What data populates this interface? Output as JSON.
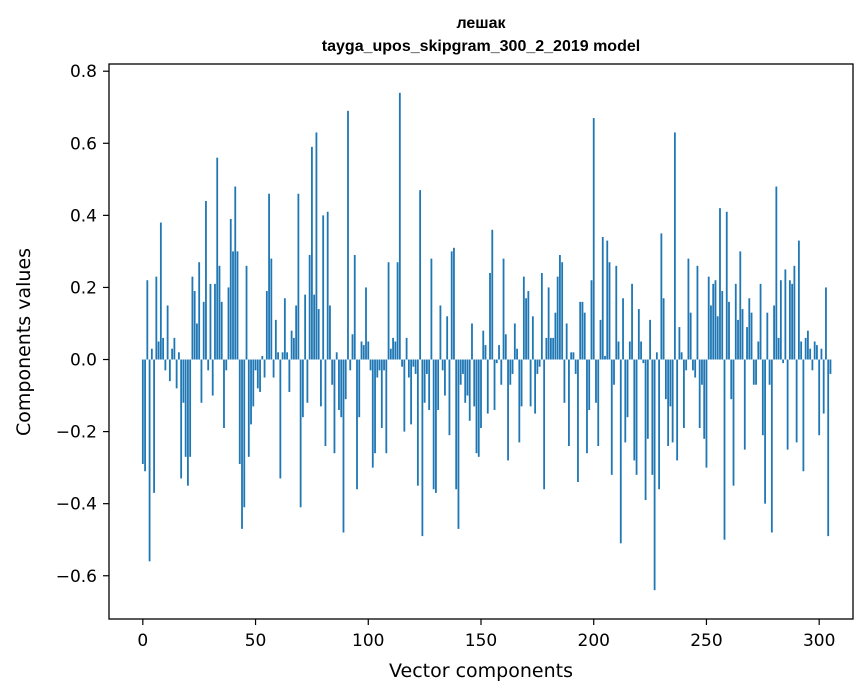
{
  "chart_data": {
    "type": "bar",
    "title": "лешак",
    "subtitle": "tayga_upos_skipgram_300_2_2019 model",
    "xlabel": "Vector components",
    "ylabel": "Components values",
    "xlim": [
      -15,
      315
    ],
    "ylim": [
      -0.72,
      0.82
    ],
    "xticks": [
      0,
      50,
      100,
      150,
      200,
      250,
      300
    ],
    "yticks": [
      -0.6,
      -0.4,
      -0.2,
      0.0,
      0.2,
      0.4,
      0.6,
      0.8
    ],
    "xtick_labels": [
      "0",
      "50",
      "100",
      "150",
      "200",
      "250",
      "300"
    ],
    "ytick_labels": [
      "−0.6",
      "−0.4",
      "−0.2",
      "0.0",
      "0.2",
      "0.4",
      "0.6",
      "0.8"
    ],
    "bar_color": "#1f77b4",
    "grid": false,
    "values": [
      -0.29,
      -0.31,
      0.22,
      -0.56,
      0.03,
      -0.37,
      0.23,
      0.05,
      0.38,
      0.06,
      -0.03,
      0.15,
      -0.06,
      0.03,
      0.06,
      -0.08,
      0.02,
      -0.33,
      -0.12,
      -0.27,
      -0.35,
      -0.27,
      0.23,
      0.19,
      0.1,
      0.27,
      -0.12,
      0.16,
      0.44,
      -0.03,
      0.21,
      -0.1,
      0.21,
      0.56,
      0.26,
      0.16,
      -0.19,
      -0.03,
      0.2,
      0.39,
      0.3,
      0.48,
      0.3,
      -0.29,
      -0.47,
      -0.41,
      0.26,
      -0.27,
      -0.18,
      -0.13,
      -0.03,
      -0.08,
      -0.09,
      0.01,
      -0.05,
      0.19,
      0.46,
      0.28,
      -0.05,
      0.11,
      0.02,
      -0.33,
      0.02,
      0.17,
      0.02,
      -0.09,
      0.08,
      0.06,
      0.15,
      0.46,
      -0.41,
      -0.16,
      0.18,
      -0.12,
      0.29,
      0.59,
      0.18,
      0.63,
      0.14,
      -0.13,
      0.4,
      -0.24,
      0.41,
      0.15,
      -0.07,
      -0.26,
      0.02,
      -0.14,
      -0.16,
      -0.48,
      -0.11,
      0.69,
      -0.03,
      0.07,
      0.29,
      -0.36,
      -0.16,
      0.05,
      0.04,
      0.2,
      0.05,
      -0.03,
      -0.3,
      -0.26,
      -0.05,
      -0.03,
      -0.19,
      -0.03,
      -0.26,
      0.27,
      0.03,
      0.06,
      0.05,
      0.27,
      0.74,
      -0.02,
      -0.2,
      0.06,
      -0.05,
      -0.18,
      -0.02,
      -0.04,
      -0.35,
      0.47,
      -0.49,
      -0.12,
      -0.04,
      -0.14,
      0.28,
      -0.36,
      -0.37,
      -0.14,
      0.15,
      -0.03,
      -0.1,
      0.12,
      -0.21,
      0.3,
      0.31,
      -0.36,
      -0.47,
      -0.07,
      -0.04,
      -0.12,
      -0.1,
      -0.17,
      0.1,
      -0.13,
      -0.26,
      -0.27,
      -0.19,
      0.08,
      0.04,
      -0.15,
      0.24,
      0.36,
      -0.14,
      -0.01,
      0.04,
      -0.07,
      0.28,
      0.07,
      -0.28,
      -0.07,
      -0.04,
      0.1,
      0.03,
      -0.23,
      -0.13,
      0.23,
      0.17,
      0.19,
      -0.13,
      0.12,
      -0.15,
      -0.04,
      -0.02,
      0.24,
      -0.36,
      0.06,
      0.2,
      0.06,
      0.06,
      0.13,
      0.23,
      0.29,
      0.27,
      -0.12,
      0.1,
      -0.24,
      0.02,
      0.02,
      -0.04,
      -0.34,
      0.16,
      0.16,
      0.13,
      -0.26,
      -0.14,
      0.22,
      0.67,
      -0.12,
      -0.24,
      0.11,
      0.34,
      0.01,
      0.33,
      0.27,
      -0.32,
      -0.07,
      0.26,
      0.05,
      -0.51,
      0.17,
      -0.23,
      -0.16,
      0.05,
      0.21,
      -0.28,
      -0.32,
      0.14,
      0.05,
      -0.01,
      -0.39,
      -0.22,
      0.11,
      -0.32,
      -0.64,
      0.02,
      -0.36,
      0.35,
      0.17,
      -0.11,
      -0.24,
      -0.13,
      -0.23,
      0.63,
      -0.28,
      0.09,
      0.02,
      -0.19,
      -0.03,
      0.28,
      0.13,
      -0.03,
      -0.05,
      0.26,
      -0.19,
      -0.07,
      -0.22,
      -0.3,
      0.23,
      0.15,
      0.21,
      0.22,
      0.12,
      0.42,
      0.19,
      -0.5,
      0.41,
      0.16,
      -0.11,
      -0.35,
      0.21,
      0.11,
      0.3,
      0.14,
      -0.25,
      0.09,
      0.17,
      0.13,
      -0.07,
      -0.07,
      0.05,
      0.21,
      -0.21,
      -0.4,
      0.13,
      -0.07,
      -0.48,
      0.15,
      0.48,
      0.06,
      0.22,
      -0.01,
      0.25,
      -0.25,
      0.22,
      0.21,
      0.26,
      -0.23,
      0.33,
      0.05,
      -0.31,
      0.06,
      0.08,
      0.03,
      -0.03,
      0.05,
      0.04,
      -0.21,
      0.03,
      -0.15,
      0.2,
      -0.49,
      -0.04
    ]
  }
}
